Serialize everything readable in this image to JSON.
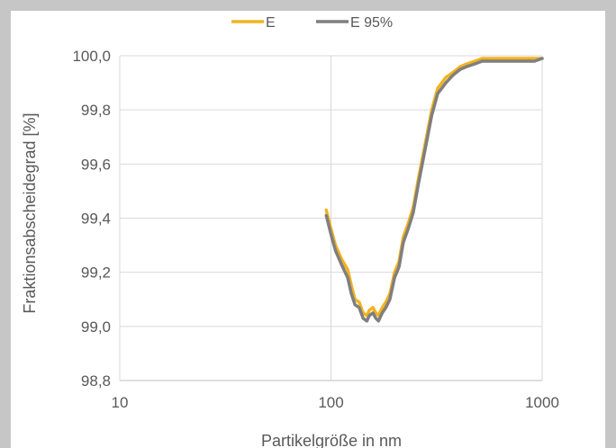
{
  "chart_data": {
    "type": "line",
    "title": "",
    "xlabel": "Partikelgröße in nm",
    "ylabel": "Fraktionsabscheidegrad [%]",
    "xscale": "log",
    "xlim": [
      10,
      1000
    ],
    "ylim": [
      98.8,
      100.0
    ],
    "x_ticks": [
      "10",
      "100",
      "1000"
    ],
    "y_ticks": [
      "98,8",
      "99,0",
      "99,2",
      "99,4",
      "99,6",
      "99,8",
      "100,0"
    ],
    "grid": "vertical and horizontal major gridlines",
    "legend_position": "top",
    "series": [
      {
        "name": "E",
        "color": "#f2b320",
        "x": [
          95,
          100,
          105,
          112,
          120,
          125,
          130,
          136,
          142,
          148,
          152,
          158,
          163,
          168,
          175,
          182,
          190,
          200,
          210,
          220,
          232,
          245,
          260,
          280,
          300,
          320,
          350,
          380,
          410,
          440,
          480,
          520,
          560,
          600,
          650,
          700,
          750,
          800,
          860,
          920,
          1000
        ],
        "y": [
          99.43,
          99.36,
          99.3,
          99.25,
          99.21,
          99.15,
          99.1,
          99.09,
          99.05,
          99.04,
          99.06,
          99.07,
          99.05,
          99.04,
          99.07,
          99.09,
          99.12,
          99.2,
          99.24,
          99.33,
          99.38,
          99.44,
          99.55,
          99.68,
          99.8,
          99.88,
          99.92,
          99.94,
          99.96,
          99.97,
          99.98,
          99.99,
          99.99,
          99.99,
          99.99,
          99.99,
          99.99,
          99.99,
          99.99,
          99.99,
          99.99
        ]
      },
      {
        "name": "E 95%",
        "color": "#7f7f7f",
        "x": [
          95,
          100,
          105,
          112,
          120,
          125,
          130,
          136,
          142,
          148,
          152,
          158,
          163,
          168,
          175,
          182,
          190,
          200,
          210,
          220,
          232,
          245,
          260,
          280,
          300,
          320,
          350,
          380,
          410,
          440,
          480,
          520,
          560,
          600,
          650,
          700,
          750,
          800,
          860,
          920,
          1000
        ],
        "y": [
          99.41,
          99.34,
          99.28,
          99.23,
          99.18,
          99.12,
          99.08,
          99.07,
          99.03,
          99.02,
          99.04,
          99.05,
          99.03,
          99.02,
          99.05,
          99.07,
          99.1,
          99.18,
          99.22,
          99.31,
          99.36,
          99.42,
          99.53,
          99.66,
          99.78,
          99.86,
          99.9,
          99.93,
          99.95,
          99.96,
          99.97,
          99.98,
          99.98,
          99.98,
          99.98,
          99.98,
          99.98,
          99.98,
          99.98,
          99.98,
          99.99
        ]
      }
    ]
  }
}
